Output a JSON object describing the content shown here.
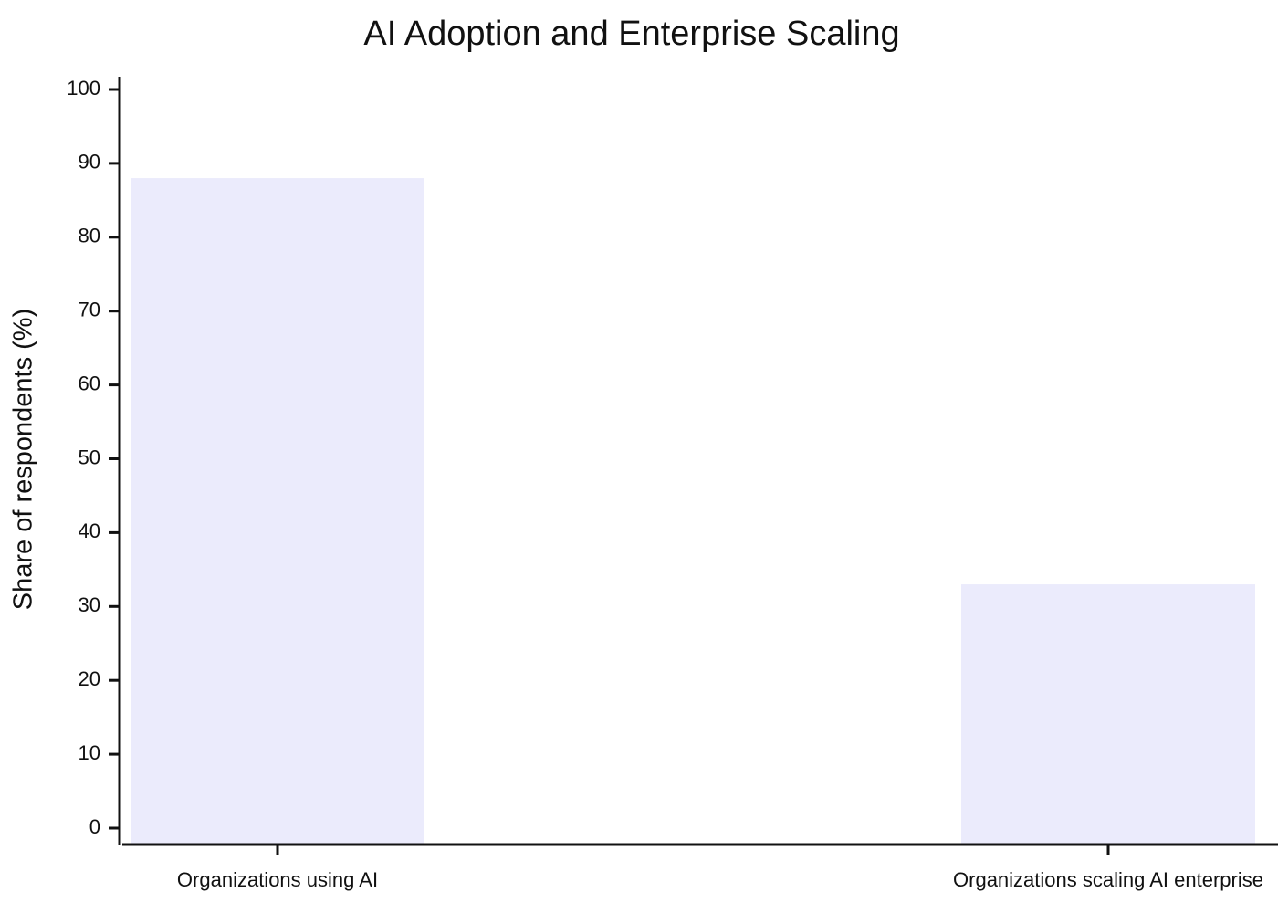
{
  "chart_data": {
    "type": "bar",
    "title": "AI Adoption and Enterprise Scaling",
    "y_label": "Share of respondents (%)",
    "categories": [
      "Organizations using AI",
      "Organizations scaling AI enterprise"
    ],
    "values": [
      88,
      33
    ],
    "color": "#ebebfc",
    "ylim": [
      0,
      100
    ],
    "yticks": [
      0,
      10,
      20,
      30,
      40,
      50,
      60,
      70,
      80,
      90,
      100
    ],
    "grid": false
  }
}
